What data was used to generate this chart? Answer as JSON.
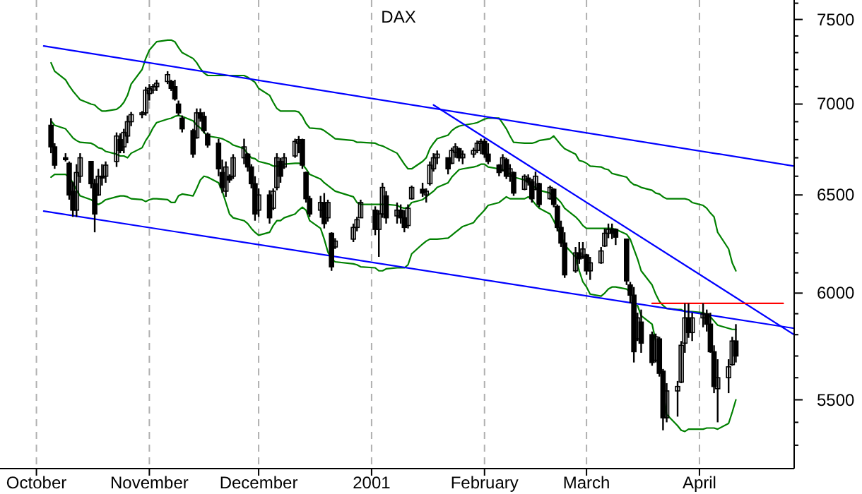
{
  "chart_data": {
    "type": "candlestick",
    "title": "DAX",
    "log": "y",
    "grid": "x",
    "xlim": [
      "2000-09-21",
      "2001-04-27"
    ],
    "xticks": [
      {
        "value": "2000-10-01",
        "label": "October"
      },
      {
        "value": "2000-11-01",
        "label": "November"
      },
      {
        "value": "2000-12-01",
        "label": "December"
      },
      {
        "value": "2001-01-01",
        "label": "2001"
      },
      {
        "value": "2001-02-01",
        "label": "February"
      },
      {
        "value": "2001-03-01",
        "label": "March"
      },
      {
        "value": "2001-04-01",
        "label": "April"
      }
    ],
    "ylim": [
      5200,
      7620
    ],
    "yticks": [
      {
        "value": 5300,
        "label": null
      },
      {
        "value": 5400,
        "label": null
      },
      5500,
      {
        "value": 5600,
        "label": null
      },
      {
        "value": 5700,
        "label": null
      },
      {
        "value": 5800,
        "label": null
      },
      {
        "value": 5900,
        "label": null
      },
      6000,
      {
        "value": 6100,
        "label": null
      },
      {
        "value": 6200,
        "label": null
      },
      {
        "value": 6300,
        "label": null
      },
      {
        "value": 6400,
        "label": null
      },
      6500,
      {
        "value": 6600,
        "label": null
      },
      {
        "value": 6700,
        "label": null
      },
      {
        "value": 6800,
        "label": null
      },
      {
        "value": 6900,
        "label": null
      },
      7000,
      {
        "value": 7100,
        "label": null
      },
      {
        "value": 7200,
        "label": null
      },
      {
        "value": 7300,
        "label": null
      },
      {
        "value": 7400,
        "label": null
      },
      7500,
      {
        "value": 7600,
        "label": null
      }
    ],
    "x": [
      "2000-10-05",
      "2000-10-06",
      "2000-10-09",
      "2000-10-10",
      "2000-10-11",
      "2000-10-12",
      "2000-10-13",
      "2000-10-16",
      "2000-10-17",
      "2000-10-18",
      "2000-10-19",
      "2000-10-20",
      "2000-10-23",
      "2000-10-24",
      "2000-10-25",
      "2000-10-26",
      "2000-10-27",
      "2000-10-30",
      "2000-10-31",
      "2000-11-01",
      "2000-11-02",
      "2000-11-03",
      "2000-11-06",
      "2000-11-07",
      "2000-11-08",
      "2000-11-09",
      "2000-11-10",
      "2000-11-13",
      "2000-11-14",
      "2000-11-15",
      "2000-11-16",
      "2000-11-17",
      "2000-11-20",
      "2000-11-21",
      "2000-11-22",
      "2000-11-23",
      "2000-11-24",
      "2000-11-27",
      "2000-11-28",
      "2000-11-29",
      "2000-11-30",
      "2000-12-01",
      "2000-12-04",
      "2000-12-05",
      "2000-12-06",
      "2000-12-07",
      "2000-12-08",
      "2000-12-11",
      "2000-12-12",
      "2000-12-13",
      "2000-12-14",
      "2000-12-15",
      "2000-12-18",
      "2000-12-19",
      "2000-12-20",
      "2000-12-21",
      "2000-12-22",
      "2000-12-27",
      "2000-12-28",
      "2000-12-29",
      "2001-01-02",
      "2001-01-03",
      "2001-01-04",
      "2001-01-05",
      "2001-01-08",
      "2001-01-09",
      "2001-01-10",
      "2001-01-11",
      "2001-01-12",
      "2001-01-15",
      "2001-01-16",
      "2001-01-17",
      "2001-01-18",
      "2001-01-19",
      "2001-01-22",
      "2001-01-23",
      "2001-01-24",
      "2001-01-25",
      "2001-01-26",
      "2001-01-29",
      "2001-01-30",
      "2001-01-31",
      "2001-02-01",
      "2001-02-02",
      "2001-02-05",
      "2001-02-06",
      "2001-02-07",
      "2001-02-08",
      "2001-02-09",
      "2001-02-12",
      "2001-02-13",
      "2001-02-14",
      "2001-02-15",
      "2001-02-16",
      "2001-02-19",
      "2001-02-20",
      "2001-02-21",
      "2001-02-22",
      "2001-02-23",
      "2001-02-26",
      "2001-02-27",
      "2001-02-28",
      "2001-03-01",
      "2001-03-02",
      "2001-03-05",
      "2001-03-06",
      "2001-03-07",
      "2001-03-08",
      "2001-03-09",
      "2001-03-12",
      "2001-03-13",
      "2001-03-14",
      "2001-03-15",
      "2001-03-16",
      "2001-03-19",
      "2001-03-20",
      "2001-03-21",
      "2001-03-22",
      "2001-03-23",
      "2001-03-26",
      "2001-03-27",
      "2001-03-28",
      "2001-03-29",
      "2001-03-30",
      "2001-04-02",
      "2001-04-03",
      "2001-04-04",
      "2001-04-05",
      "2001-04-06",
      "2001-04-09",
      "2001-04-10",
      "2001-04-11"
    ],
    "color": "#000000",
    "ohlc": [
      [
        6880,
        6920,
        6725,
        6760
      ],
      [
        6760,
        6780,
        6640,
        6660
      ],
      [
        6700,
        6725,
        6680,
        6690
      ],
      [
        6670,
        6680,
        6475,
        6500
      ],
      [
        6520,
        6570,
        6385,
        6420
      ],
      [
        6420,
        6665,
        6385,
        6620
      ],
      [
        6600,
        6725,
        6565,
        6700
      ],
      [
        6680,
        6680,
        6535,
        6560
      ],
      [
        6560,
        6585,
        6305,
        6400
      ],
      [
        6500,
        6640,
        6495,
        6600
      ],
      [
        6600,
        6665,
        6550,
        6590
      ],
      [
        6600,
        6680,
        6565,
        6660
      ],
      [
        6680,
        6840,
        6650,
        6820
      ],
      [
        6800,
        6835,
        6725,
        6740
      ],
      [
        6760,
        6860,
        6725,
        6840
      ],
      [
        6820,
        6935,
        6780,
        6900
      ],
      [
        6900,
        6955,
        6875,
        6940
      ],
      [
        6940,
        6960,
        6920,
        6950
      ],
      [
        6950,
        7100,
        6935,
        7080
      ],
      [
        7060,
        7115,
        7020,
        7090
      ],
      [
        7080,
        7115,
        7060,
        7100
      ],
      [
        7100,
        7140,
        7075,
        7120
      ],
      [
        7130,
        7190,
        7115,
        7170
      ],
      [
        7130,
        7140,
        7075,
        7090
      ],
      [
        7100,
        7140,
        7020,
        7030
      ],
      [
        7000,
        7020,
        6935,
        6950
      ],
      [
        6920,
        6935,
        6840,
        6860
      ],
      [
        6850,
        6860,
        6700,
        6720
      ],
      [
        6810,
        6975,
        6805,
        6950
      ],
      [
        6950,
        6975,
        6900,
        6920
      ],
      [
        6930,
        6955,
        6835,
        6850
      ],
      [
        6830,
        6840,
        6755,
        6770
      ],
      [
        6780,
        6805,
        6600,
        6640
      ],
      [
        6620,
        6690,
        6510,
        6540
      ],
      [
        6520,
        6680,
        6490,
        6650
      ],
      [
        6600,
        6610,
        6565,
        6580
      ],
      [
        6600,
        6720,
        6585,
        6700
      ],
      [
        6700,
        6805,
        6665,
        6760
      ],
      [
        6720,
        6725,
        6625,
        6650
      ],
      [
        6650,
        6665,
        6535,
        6560
      ],
      [
        6560,
        6600,
        6365,
        6400
      ],
      [
        6420,
        6535,
        6385,
        6500
      ],
      [
        6500,
        6525,
        6350,
        6380
      ],
      [
        6430,
        6535,
        6420,
        6520
      ],
      [
        6540,
        6725,
        6525,
        6700
      ],
      [
        6680,
        6700,
        6565,
        6600
      ],
      [
        6650,
        6725,
        6640,
        6700
      ],
      [
        6710,
        6805,
        6700,
        6790
      ],
      [
        6780,
        6820,
        6725,
        6800
      ],
      [
        6800,
        6805,
        6640,
        6660
      ],
      [
        6620,
        6625,
        6460,
        6480
      ],
      [
        6480,
        6495,
        6385,
        6400
      ],
      [
        6420,
        6495,
        6380,
        6460
      ],
      [
        6460,
        6510,
        6325,
        6350
      ],
      [
        6380,
        6475,
        6360,
        6460
      ],
      [
        6300,
        6305,
        6110,
        6130
      ],
      [
        6230,
        6275,
        6220,
        6260
      ],
      [
        6270,
        6350,
        6255,
        6330
      ],
      [
        6330,
        6385,
        6310,
        6370
      ],
      [
        6380,
        6475,
        6380,
        6460
      ],
      [
        6420,
        6440,
        6290,
        6320
      ],
      [
        6320,
        6420,
        6180,
        6400
      ],
      [
        6400,
        6565,
        6380,
        6540
      ],
      [
        6495,
        6520,
        6350,
        6380
      ],
      [
        6390,
        6460,
        6350,
        6420
      ],
      [
        6420,
        6450,
        6350,
        6380
      ],
      [
        6380,
        6420,
        6305,
        6330
      ],
      [
        6340,
        6450,
        6325,
        6430
      ],
      [
        6480,
        6550,
        6475,
        6540
      ],
      [
        6530,
        6565,
        6490,
        6510
      ],
      [
        6500,
        6535,
        6460,
        6520
      ],
      [
        6560,
        6680,
        6550,
        6660
      ],
      [
        6640,
        6725,
        6625,
        6700
      ],
      [
        6700,
        6740,
        6665,
        6720
      ],
      [
        6700,
        6700,
        6610,
        6640
      ],
      [
        6670,
        6755,
        6665,
        6740
      ],
      [
        6730,
        6780,
        6700,
        6760
      ],
      [
        6750,
        6755,
        6680,
        6700
      ],
      [
        6700,
        6740,
        6665,
        6720
      ],
      [
        6720,
        6755,
        6700,
        6740
      ],
      [
        6740,
        6795,
        6725,
        6780
      ],
      [
        6780,
        6805,
        6720,
        6790
      ],
      [
        6790,
        6805,
        6700,
        6720
      ],
      [
        6720,
        6780,
        6665,
        6680
      ],
      [
        6660,
        6665,
        6600,
        6620
      ],
      [
        6630,
        6720,
        6625,
        6700
      ],
      [
        6690,
        6700,
        6585,
        6600
      ],
      [
        6600,
        6665,
        6570,
        6640
      ],
      [
        6620,
        6625,
        6495,
        6510
      ],
      [
        6530,
        6610,
        6525,
        6600
      ],
      [
        6590,
        6610,
        6550,
        6570
      ],
      [
        6570,
        6585,
        6460,
        6480
      ],
      [
        6530,
        6625,
        6525,
        6600
      ],
      [
        6560,
        6565,
        6435,
        6450
      ],
      [
        6480,
        6550,
        6475,
        6540
      ],
      [
        6530,
        6535,
        6435,
        6450
      ],
      [
        6440,
        6450,
        6310,
        6330
      ],
      [
        6330,
        6365,
        6230,
        6250
      ],
      [
        6250,
        6305,
        6075,
        6090
      ],
      [
        6110,
        6230,
        6100,
        6200
      ],
      [
        6200,
        6255,
        6145,
        6170
      ],
      [
        6180,
        6255,
        6170,
        6220
      ],
      [
        6190,
        6195,
        6090,
        6110
      ],
      [
        6110,
        6180,
        6065,
        6150
      ],
      [
        6150,
        6230,
        6145,
        6210
      ],
      [
        6235,
        6325,
        6230,
        6300
      ],
      [
        6300,
        6350,
        6275,
        6320
      ],
      [
        6320,
        6350,
        6270,
        6300
      ],
      [
        6320,
        6325,
        6240,
        6280
      ],
      [
        6270,
        6270,
        6040,
        6060
      ],
      [
        6040,
        6055,
        5950,
        5990
      ],
      [
        5990,
        6030,
        5670,
        5720
      ],
      [
        5780,
        5905,
        5770,
        5880
      ],
      [
        5860,
        5920,
        5715,
        5760
      ],
      [
        5800,
        5815,
        5655,
        5670
      ],
      [
        5680,
        5805,
        5670,
        5790
      ],
      [
        5780,
        5790,
        5605,
        5620
      ],
      [
        5630,
        5640,
        5365,
        5420
      ],
      [
        5420,
        5575,
        5400,
        5540
      ],
      [
        5540,
        5585,
        5425,
        5560
      ],
      [
        5580,
        5770,
        5575,
        5750
      ],
      [
        5760,
        5950,
        5715,
        5880
      ],
      [
        5880,
        5950,
        5785,
        5810
      ],
      [
        5810,
        5905,
        5770,
        5880
      ],
      [
        5880,
        5950,
        5835,
        5900
      ],
      [
        5900,
        5920,
        5815,
        5850
      ],
      [
        5850,
        5905,
        5715,
        5720
      ],
      [
        5720,
        5750,
        5530,
        5560
      ],
      [
        5550,
        5685,
        5400,
        5600
      ],
      [
        5600,
        5685,
        5530,
        5650
      ],
      [
        5660,
        5790,
        5655,
        5770
      ],
      [
        5770,
        5850,
        5670,
        5700
      ]
    ],
    "series": [
      {
        "type": "line",
        "color": "#008000",
        "values": [
          7240,
          7190,
          7140,
          7105,
          7075,
          7050,
          7025,
          7000,
          6995,
          6975,
          6960,
          6960,
          6970,
          6985,
          7010,
          7050,
          7115,
          7200,
          7265,
          7315,
          7340,
          7365,
          7375,
          7375,
          7365,
          7330,
          7300,
          7265,
          7240,
          7205,
          7180,
          7165,
          7165,
          7165,
          7165,
          7165,
          7165,
          7165,
          7155,
          7140,
          7125,
          7090,
          7050,
          7010,
          6975,
          6960,
          6960,
          6960,
          6955,
          6930,
          6890,
          6865,
          6860,
          6850,
          6835,
          6820,
          6805,
          6795,
          6785,
          6785,
          6780,
          6770,
          6765,
          6755,
          6725,
          6695,
          6665,
          6640,
          6640,
          6680,
          6700,
          6750,
          6780,
          6805,
          6825,
          6850,
          6865,
          6875,
          6880,
          6890,
          6895,
          6905,
          6915,
          6920,
          6920,
          6890,
          6860,
          6820,
          6785,
          6780,
          6780,
          6780,
          6785,
          6795,
          6805,
          6820,
          6795,
          6770,
          6750,
          6720,
          6685,
          6680,
          6670,
          6655,
          6650,
          6640,
          6635,
          6615,
          6610,
          6595,
          6570,
          6555,
          6550,
          6540,
          6525,
          6510,
          6505,
          6490,
          6480,
          6480,
          6480,
          6480,
          6475,
          6460,
          6445,
          6430,
          6405,
          6385,
          6305,
          6220,
          6150,
          6110
        ]
      },
      {
        "type": "line",
        "color": "#008000",
        "values": [
          6905,
          6880,
          6860,
          6835,
          6810,
          6795,
          6785,
          6780,
          6770,
          6755,
          6750,
          6735,
          6720,
          6710,
          6710,
          6700,
          6725,
          6755,
          6795,
          6825,
          6865,
          6895,
          6915,
          6920,
          6930,
          6935,
          6930,
          6905,
          6880,
          6865,
          6840,
          6820,
          6810,
          6805,
          6795,
          6785,
          6770,
          6750,
          6720,
          6700,
          6695,
          6680,
          6665,
          6655,
          6655,
          6655,
          6665,
          6670,
          6670,
          6665,
          6640,
          6610,
          6585,
          6565,
          6550,
          6535,
          6520,
          6490,
          6460,
          6450,
          6450,
          6450,
          6450,
          6450,
          6445,
          6435,
          6430,
          6435,
          6460,
          6475,
          6490,
          6505,
          6520,
          6540,
          6565,
          6595,
          6615,
          6635,
          6640,
          6650,
          6655,
          6665,
          6665,
          6650,
          6640,
          6635,
          6625,
          6610,
          6595,
          6580,
          6565,
          6550,
          6540,
          6525,
          6510,
          6495,
          6480,
          6460,
          6430,
          6385,
          6365,
          6340,
          6325,
          6325,
          6325,
          6325,
          6325,
          6325,
          6320,
          6295,
          6270,
          6220,
          6170,
          6110,
          6040,
          5995,
          5960,
          5940,
          5925,
          5920,
          5920,
          5910,
          5910,
          5910,
          5905,
          5895,
          5885,
          5865,
          5845,
          5830,
          5825,
          5825
        ]
      },
      {
        "type": "line",
        "color": "#008000",
        "values": [
          6595,
          6610,
          6610,
          6595,
          6565,
          6525,
          6495,
          6475,
          6460,
          6450,
          6460,
          6475,
          6490,
          6495,
          6495,
          6490,
          6480,
          6475,
          6465,
          6475,
          6480,
          6480,
          6475,
          6460,
          6460,
          6495,
          6505,
          6495,
          6535,
          6580,
          6600,
          6595,
          6565,
          6520,
          6460,
          6400,
          6380,
          6365,
          6350,
          6325,
          6305,
          6290,
          6305,
          6340,
          6365,
          6365,
          6380,
          6400,
          6420,
          6435,
          6420,
          6365,
          6325,
          6270,
          6205,
          6170,
          6155,
          6145,
          6140,
          6130,
          6125,
          6110,
          6110,
          6120,
          6125,
          6125,
          6125,
          6140,
          6195,
          6245,
          6260,
          6270,
          6270,
          6270,
          6275,
          6290,
          6305,
          6320,
          6335,
          6355,
          6380,
          6400,
          6420,
          6445,
          6460,
          6475,
          6490,
          6480,
          6480,
          6480,
          6490,
          6475,
          6450,
          6430,
          6400,
          6365,
          6325,
          6290,
          6240,
          6180,
          6110,
          6055,
          6030,
          5995,
          5985,
          6000,
          6020,
          6030,
          6030,
          6020,
          6005,
          null,
          5940,
          5890,
          5850,
          5770,
          null,
          5540,
          5435,
          5385,
          5365,
          5360,
          5370,
          5370,
          5370,
          5375,
          5375,
          5375,
          5370,
          5395,
          5445,
          5500
        ]
      },
      {
        "type": "line",
        "color": "#0000ff",
        "x": [
          "2000-10-03",
          "2001-04-27"
        ],
        "values": [
          7340,
          6655
        ]
      },
      {
        "type": "line",
        "color": "#0000ff",
        "x": [
          "2000-10-03",
          "2001-04-27"
        ],
        "values": [
          6415,
          5830
        ]
      },
      {
        "type": "line",
        "color": "#0000ff",
        "x": [
          "2001-01-18",
          "2001-04-27"
        ],
        "values": [
          6995,
          5800
        ]
      },
      {
        "type": "line",
        "color": "#ff0000",
        "x": [
          "2001-03-19",
          "2001-04-24"
        ],
        "values": [
          5950,
          5950
        ]
      }
    ]
  }
}
